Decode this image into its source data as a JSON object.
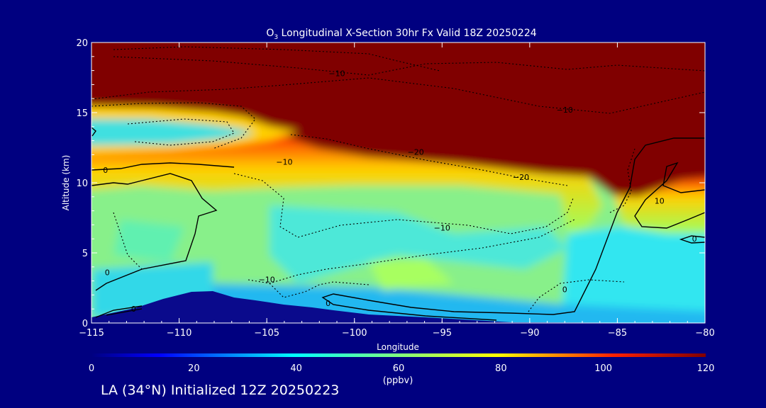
{
  "chart_data": {
    "type": "heatmap",
    "title_species": "O",
    "title_sub": "3",
    "title_rest": " Longitudinal X-Section 30hr  Fx Valid 18Z 20250224",
    "xlabel": "Longitude",
    "ylabel": "Altitude (km)",
    "xlim": [
      -115,
      -80
    ],
    "ylim": [
      0,
      20
    ],
    "x_ticks": [
      -115,
      -110,
      -105,
      -100,
      -95,
      -90,
      -85,
      -80
    ],
    "x_tick_labels": [
      "−115",
      "−110",
      "−105",
      "−100",
      "−95",
      "−90",
      "−85",
      "−80"
    ],
    "y_ticks": [
      0,
      5,
      10,
      15,
      20
    ],
    "y_tick_labels": [
      "0",
      "5",
      "10",
      "15",
      "20"
    ],
    "colorbar": {
      "label": "(ppbv)",
      "range": [
        0,
        120
      ],
      "ticks": [
        0,
        20,
        40,
        60,
        80,
        100,
        120
      ],
      "tick_labels": [
        "0",
        "20",
        "40",
        "60",
        "80",
        "100",
        "120"
      ]
    },
    "contour_labels": [
      {
        "text": "−10",
        "lon": -101.0,
        "alt": 17.6
      },
      {
        "text": "−10",
        "lon": -88.0,
        "alt": 15.0
      },
      {
        "text": "−20",
        "lon": -96.5,
        "alt": 12.0
      },
      {
        "text": "−10",
        "lon": -104.0,
        "alt": 11.3
      },
      {
        "text": "0",
        "lon": -114.2,
        "alt": 10.7
      },
      {
        "text": "−20",
        "lon": -90.5,
        "alt": 10.2
      },
      {
        "text": "−10",
        "lon": -95.0,
        "alt": 6.6
      },
      {
        "text": "10",
        "lon": -82.6,
        "alt": 8.5
      },
      {
        "text": "0",
        "lon": -80.6,
        "alt": 5.8
      },
      {
        "text": "0",
        "lon": -114.1,
        "alt": 3.4
      },
      {
        "text": "−10",
        "lon": -105.0,
        "alt": 2.9
      },
      {
        "text": "0",
        "lon": -88.0,
        "alt": 2.2
      },
      {
        "text": "0",
        "lon": -112.6,
        "alt": 0.8
      },
      {
        "text": "0",
        "lon": -101.5,
        "alt": 1.2
      }
    ]
  },
  "colors": {
    "background": "#000080",
    "stratosphere": "#800000"
  },
  "footer": "LA (34°N) Initialized 12Z 20250223"
}
